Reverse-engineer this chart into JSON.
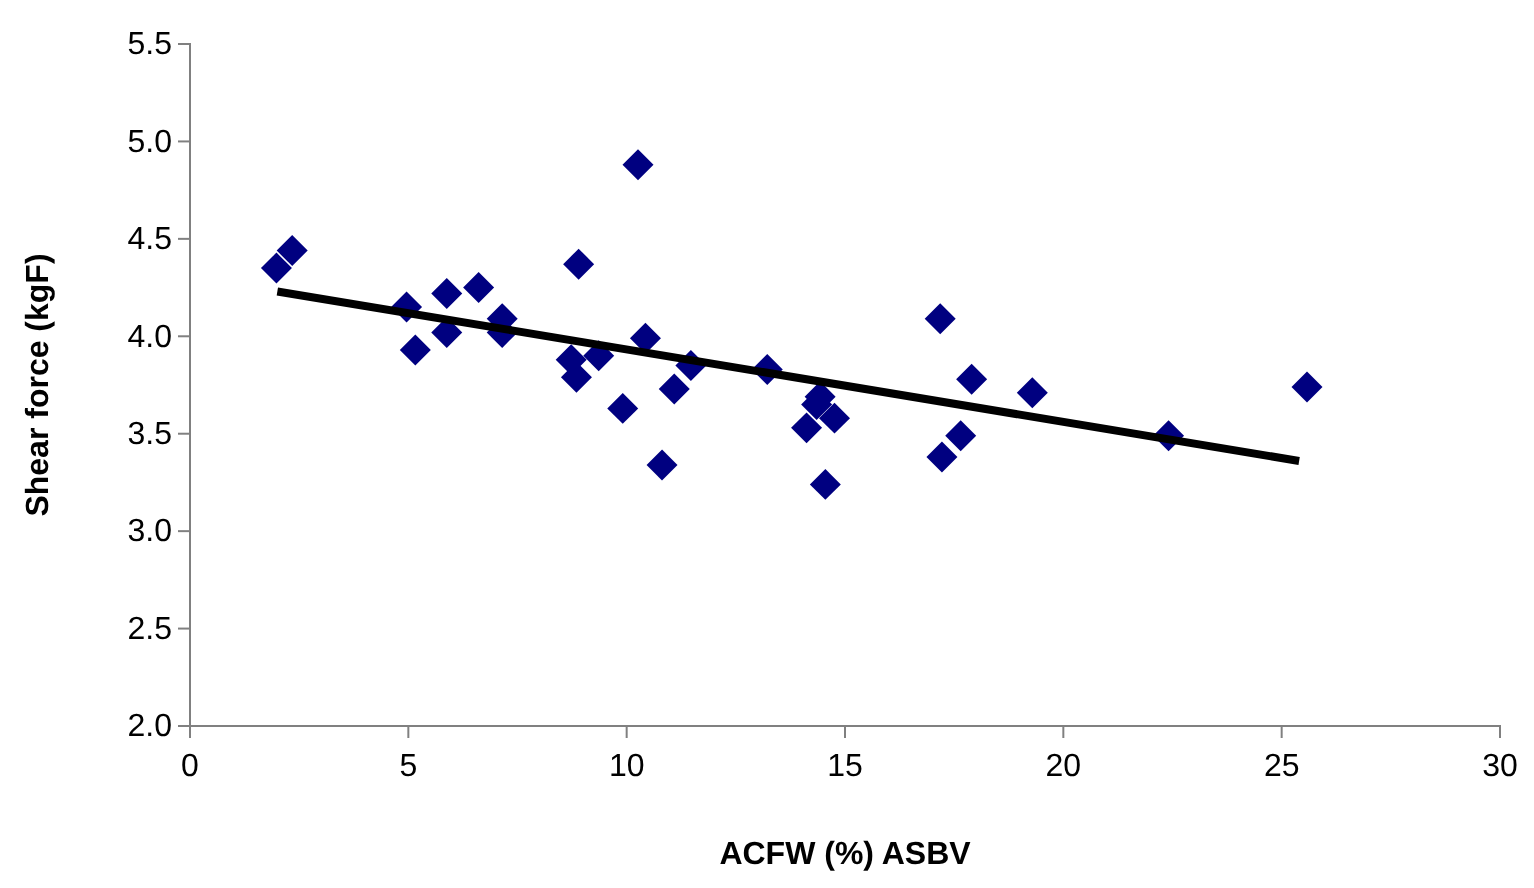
{
  "chart_data": {
    "type": "scatter",
    "xlabel": "ACFW (%) ASBV",
    "ylabel": "Shear force (kgF)",
    "xlim": [
      0,
      30
    ],
    "xticks": [
      0,
      5,
      10,
      15,
      20,
      25,
      30
    ],
    "ylim": [
      2.0,
      5.5
    ],
    "yticks": [
      {
        "value": 2.0,
        "label": "2.0"
      },
      {
        "value": 2.5,
        "label": "2.5"
      },
      {
        "value": 3.0,
        "label": "3.0"
      },
      {
        "value": 3.5,
        "label": "3.5"
      },
      {
        "value": 4.0,
        "label": "4.0"
      },
      {
        "value": 4.5,
        "label": "4.5"
      },
      {
        "value": 5.0,
        "label": "5.0"
      },
      {
        "value": 5.5,
        "label": "5.5"
      }
    ],
    "grid": false,
    "marker": "diamond",
    "series": [
      {
        "color": "#000080",
        "x": [
          1.98,
          2.34,
          4.96,
          5.16,
          5.88,
          5.88,
          6.61,
          7.15,
          7.15,
          8.9,
          8.73,
          8.85,
          9.36,
          9.91,
          10.43,
          10.26,
          11.47,
          11.09,
          10.81,
          13.22,
          14.43,
          14.35,
          14.12,
          14.76,
          14.55,
          17.18,
          17.9,
          17.65,
          17.22,
          19.29,
          22.41,
          25.58
        ],
        "values": [
          4.35,
          4.44,
          4.15,
          3.93,
          4.22,
          4.02,
          4.25,
          4.09,
          4.02,
          4.37,
          3.88,
          3.79,
          3.9,
          3.63,
          3.99,
          4.88,
          3.85,
          3.73,
          3.34,
          3.83,
          3.69,
          3.65,
          3.53,
          3.58,
          3.24,
          4.09,
          3.78,
          3.49,
          3.38,
          3.71,
          3.49,
          3.74
        ]
      },
      {
        "type": "line",
        "color": "#000000",
        "line_style": "solid",
        "marker": "none",
        "x": [
          2.0,
          25.4
        ],
        "values": [
          4.23,
          3.36
        ]
      }
    ]
  }
}
